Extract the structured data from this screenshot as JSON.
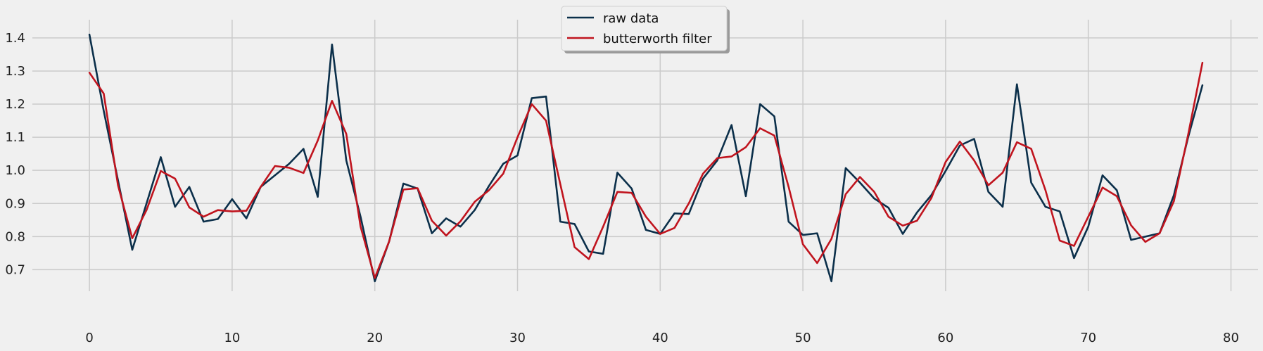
{
  "chart_data": {
    "type": "line",
    "title": "",
    "xlabel": "",
    "ylabel": "",
    "xlim": [
      -4.0,
      81.9
    ],
    "ylim": [
      0.635,
      1.455
    ],
    "xticks": [
      0,
      10,
      20,
      30,
      40,
      50,
      60,
      70,
      80
    ],
    "yticks": [
      0.7,
      0.8,
      0.9,
      1.0,
      1.1,
      1.2,
      1.3,
      1.4
    ],
    "xtick_labels": [
      "0",
      "10",
      "20",
      "30",
      "40",
      "50",
      "60",
      "70",
      "80"
    ],
    "ytick_labels": [
      "0.7",
      "0.8",
      "0.9",
      "1.0",
      "1.1",
      "1.2",
      "1.3",
      "1.4"
    ],
    "grid": true,
    "legend": {
      "placement": "top-center"
    },
    "x": [
      0,
      1,
      2,
      3,
      4,
      5,
      6,
      7,
      8,
      9,
      10,
      11,
      12,
      13,
      14,
      15,
      16,
      17,
      18,
      19,
      20,
      21,
      22,
      23,
      24,
      25,
      26,
      27,
      28,
      29,
      30,
      31,
      32,
      33,
      34,
      35,
      36,
      37,
      38,
      39,
      40,
      41,
      42,
      43,
      44,
      45,
      46,
      47,
      48,
      49,
      50,
      51,
      52,
      53,
      54,
      55,
      56,
      57,
      58,
      59,
      60,
      61,
      62,
      63,
      64,
      65,
      66,
      67,
      68,
      69,
      70,
      71,
      72,
      73,
      74,
      75,
      76,
      77,
      78
    ],
    "series": [
      {
        "name": "raw data",
        "color": "#0b2f4a",
        "values": [
          1.41,
          1.18,
          0.97,
          0.76,
          0.9,
          1.04,
          0.89,
          0.95,
          0.845,
          0.853,
          0.913,
          0.855,
          0.95,
          0.985,
          1.02,
          1.065,
          0.92,
          1.38,
          1.03,
          0.86,
          0.665,
          0.785,
          0.96,
          0.945,
          0.81,
          0.855,
          0.83,
          0.88,
          0.953,
          1.02,
          1.045,
          1.218,
          1.223,
          0.845,
          0.838,
          0.755,
          0.748,
          0.993,
          0.945,
          0.82,
          0.808,
          0.87,
          0.868,
          0.975,
          1.03,
          1.137,
          0.922,
          1.2,
          1.163,
          0.845,
          0.805,
          0.81,
          0.665,
          1.007,
          0.963,
          0.915,
          0.887,
          0.808,
          0.873,
          0.925,
          0.998,
          1.075,
          1.095,
          0.935,
          0.89,
          1.26,
          0.963,
          0.89,
          0.876,
          0.735,
          0.83,
          0.985,
          0.94,
          0.79,
          0.8,
          0.81,
          0.925,
          1.1,
          1.257
        ]
      },
      {
        "name": "butterworth filter",
        "color": "#c0141e",
        "values": [
          1.295,
          1.232,
          0.955,
          0.795,
          0.88,
          0.998,
          0.975,
          0.888,
          0.86,
          0.88,
          0.876,
          0.878,
          0.95,
          1.013,
          1.008,
          0.992,
          1.09,
          1.21,
          1.11,
          0.83,
          0.675,
          0.785,
          0.942,
          0.946,
          0.848,
          0.803,
          0.846,
          0.905,
          0.94,
          0.99,
          1.1,
          1.2,
          1.15,
          0.958,
          0.768,
          0.732,
          0.83,
          0.935,
          0.932,
          0.86,
          0.808,
          0.826,
          0.9,
          0.99,
          1.037,
          1.042,
          1.07,
          1.127,
          1.105,
          0.95,
          0.777,
          0.72,
          0.793,
          0.928,
          0.98,
          0.935,
          0.86,
          0.833,
          0.848,
          0.916,
          1.025,
          1.087,
          1.03,
          0.955,
          0.993,
          1.085,
          1.065,
          0.94,
          0.788,
          0.772,
          0.86,
          0.948,
          0.922,
          0.834,
          0.784,
          0.81,
          0.907,
          1.108,
          1.325
        ]
      }
    ]
  }
}
